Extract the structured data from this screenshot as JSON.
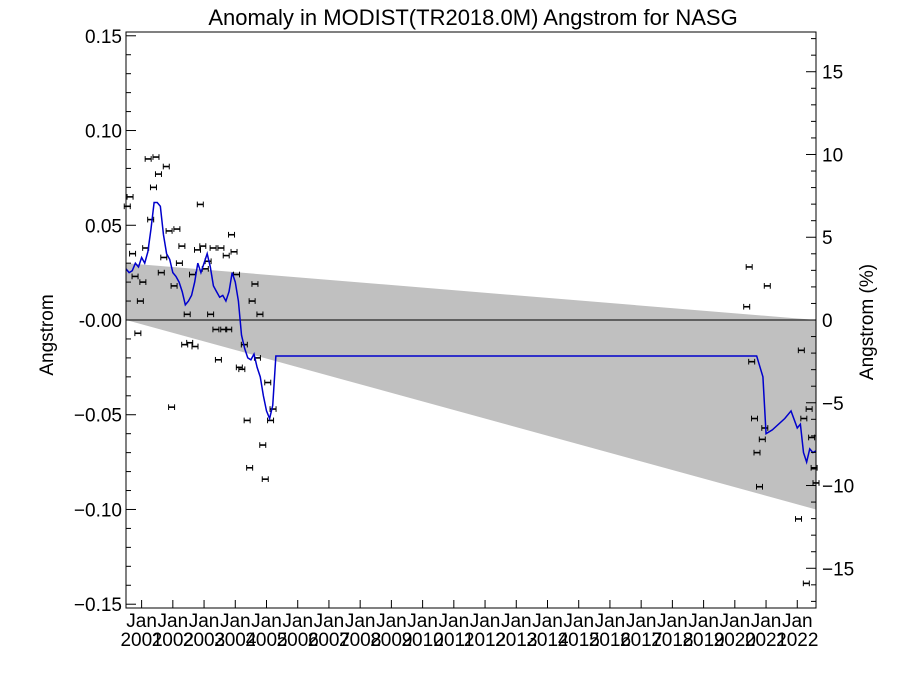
{
  "chart_data": {
    "type": "line",
    "title": "Anomaly in MODIST(TR2018.0M) Angstrom for NASG",
    "ylabel": "Angstrom",
    "y2label": "Angstrom (%)",
    "xlim": [
      2000.5,
      2022.6
    ],
    "ylim": [
      -0.152,
      0.152
    ],
    "y2lim": [
      -17.4,
      17.4
    ],
    "y_ticks": [
      0.15,
      0.1,
      0.05,
      0.0,
      -0.05,
      -0.1,
      -0.15
    ],
    "y_tick_labels": [
      "0.15",
      "0.10",
      "0.05",
      "-0.00",
      "−0.05",
      "−0.10",
      "−0.15"
    ],
    "y2_ticks": [
      15,
      10,
      5,
      0,
      -5,
      -10,
      -15
    ],
    "y2_tick_labels": [
      "15",
      "10",
      "5",
      "0",
      "−5",
      "−10",
      "−15"
    ],
    "x_ticks": [
      2001,
      2002,
      2003,
      2004,
      2005,
      2006,
      2007,
      2008,
      2009,
      2010,
      2011,
      2012,
      2013,
      2014,
      2015,
      2016,
      2017,
      2018,
      2019,
      2020,
      2021,
      2022
    ],
    "x_tick_month": "Jan",
    "x_tick_years": [
      "2001",
      "2002",
      "2003",
      "2004",
      "2005",
      "2006",
      "2007",
      "2008",
      "2009",
      "2010",
      "2011",
      "2012",
      "2013",
      "2014",
      "2015",
      "2016",
      "2017",
      "2018",
      "2019",
      "2020",
      "2021",
      "2022"
    ],
    "grid": false,
    "zero_line": 0,
    "shaded_band": {
      "x": [
        2000.5,
        2022.6
      ],
      "upper": [
        0.03,
        0.0
      ],
      "lower": [
        0.0,
        -0.1
      ],
      "color": "#c0c0c0"
    },
    "series": [
      {
        "kind": "points_with_errorbars",
        "color": "#000000",
        "x": [
          2000.54,
          2000.63,
          2000.71,
          2000.79,
          2000.88,
          2000.96,
          2001.04,
          2001.13,
          2001.21,
          2001.29,
          2001.38,
          2001.46,
          2001.54,
          2001.63,
          2001.71,
          2001.79,
          2001.88,
          2001.96,
          2002.04,
          2002.13,
          2002.21,
          2002.29,
          2002.38,
          2002.46,
          2002.54,
          2002.63,
          2002.71,
          2002.79,
          2002.88,
          2002.96,
          2003.04,
          2003.13,
          2003.21,
          2003.29,
          2003.38,
          2003.46,
          2003.54,
          2003.63,
          2003.71,
          2003.79,
          2003.88,
          2003.96,
          2004.04,
          2004.13,
          2004.21,
          2004.29,
          2004.38,
          2004.46,
          2004.54,
          2004.63,
          2004.71,
          2004.79,
          2004.88,
          2004.96,
          2005.04,
          2005.13,
          2005.21,
          2020.38,
          2020.46,
          2020.54,
          2020.63,
          2020.71,
          2020.79,
          2020.88,
          2020.96,
          2021.04,
          2022.04,
          2022.13,
          2022.21,
          2022.29,
          2022.38,
          2022.46,
          2022.54,
          2022.6
        ],
        "y": [
          0.06,
          0.065,
          0.035,
          0.023,
          -0.007,
          0.01,
          0.02,
          0.038,
          0.085,
          0.053,
          0.07,
          0.086,
          0.077,
          0.025,
          0.033,
          0.081,
          0.047,
          -0.046,
          0.018,
          0.048,
          0.03,
          0.039,
          -0.013,
          0.003,
          -0.012,
          0.024,
          -0.014,
          0.037,
          0.061,
          0.039,
          0.027,
          0.031,
          0.003,
          0.038,
          -0.005,
          -0.021,
          0.038,
          -0.005,
          0.034,
          -0.005,
          0.045,
          0.036,
          0.024,
          -0.025,
          -0.026,
          -0.013,
          -0.053,
          -0.078,
          0.01,
          0.019,
          -0.02,
          0.003,
          -0.066,
          -0.084,
          -0.033,
          -0.053,
          -0.047,
          0.007,
          0.028,
          -0.022,
          -0.052,
          -0.07,
          -0.088,
          -0.063,
          -0.057,
          0.018,
          -0.105,
          -0.016,
          -0.052,
          -0.139,
          -0.047,
          -0.062,
          -0.078,
          -0.086
        ],
        "err": 0.0015
      },
      {
        "kind": "smoothed_line",
        "color": "#0000cc",
        "x": [
          2000.5,
          2000.6,
          2000.7,
          2000.8,
          2000.9,
          2001.0,
          2001.1,
          2001.2,
          2001.3,
          2001.4,
          2001.5,
          2001.6,
          2001.7,
          2001.8,
          2001.9,
          2002.0,
          2002.1,
          2002.2,
          2002.3,
          2002.4,
          2002.5,
          2002.6,
          2002.7,
          2002.8,
          2002.9,
          2003.0,
          2003.1,
          2003.2,
          2003.3,
          2003.4,
          2003.5,
          2003.6,
          2003.7,
          2003.8,
          2003.9,
          2004.0,
          2004.1,
          2004.2,
          2004.3,
          2004.4,
          2004.5,
          2004.6,
          2004.7,
          2004.8,
          2004.9,
          2005.0,
          2005.1,
          2005.2,
          2005.3,
          2020.3,
          2020.5,
          2020.7,
          2020.9,
          2021.0,
          2021.2,
          2021.6,
          2021.8,
          2022.0,
          2022.1,
          2022.2,
          2022.3,
          2022.4,
          2022.5,
          2022.6
        ],
        "y": [
          0.027,
          0.025,
          0.026,
          0.03,
          0.028,
          0.033,
          0.03,
          0.036,
          0.048,
          0.062,
          0.062,
          0.06,
          0.045,
          0.035,
          0.032,
          0.025,
          0.023,
          0.02,
          0.015,
          0.008,
          0.01,
          0.013,
          0.02,
          0.03,
          0.025,
          0.03,
          0.035,
          0.028,
          0.018,
          0.015,
          0.012,
          0.013,
          0.01,
          0.015,
          0.025,
          0.02,
          0.01,
          -0.008,
          -0.015,
          -0.02,
          -0.021,
          -0.018,
          -0.025,
          -0.03,
          -0.04,
          -0.048,
          -0.052,
          -0.045,
          -0.019,
          -0.019,
          -0.019,
          -0.019,
          -0.03,
          -0.06,
          -0.058,
          -0.052,
          -0.048,
          -0.057,
          -0.055,
          -0.07,
          -0.075,
          -0.068,
          -0.07,
          -0.069
        ]
      }
    ]
  }
}
